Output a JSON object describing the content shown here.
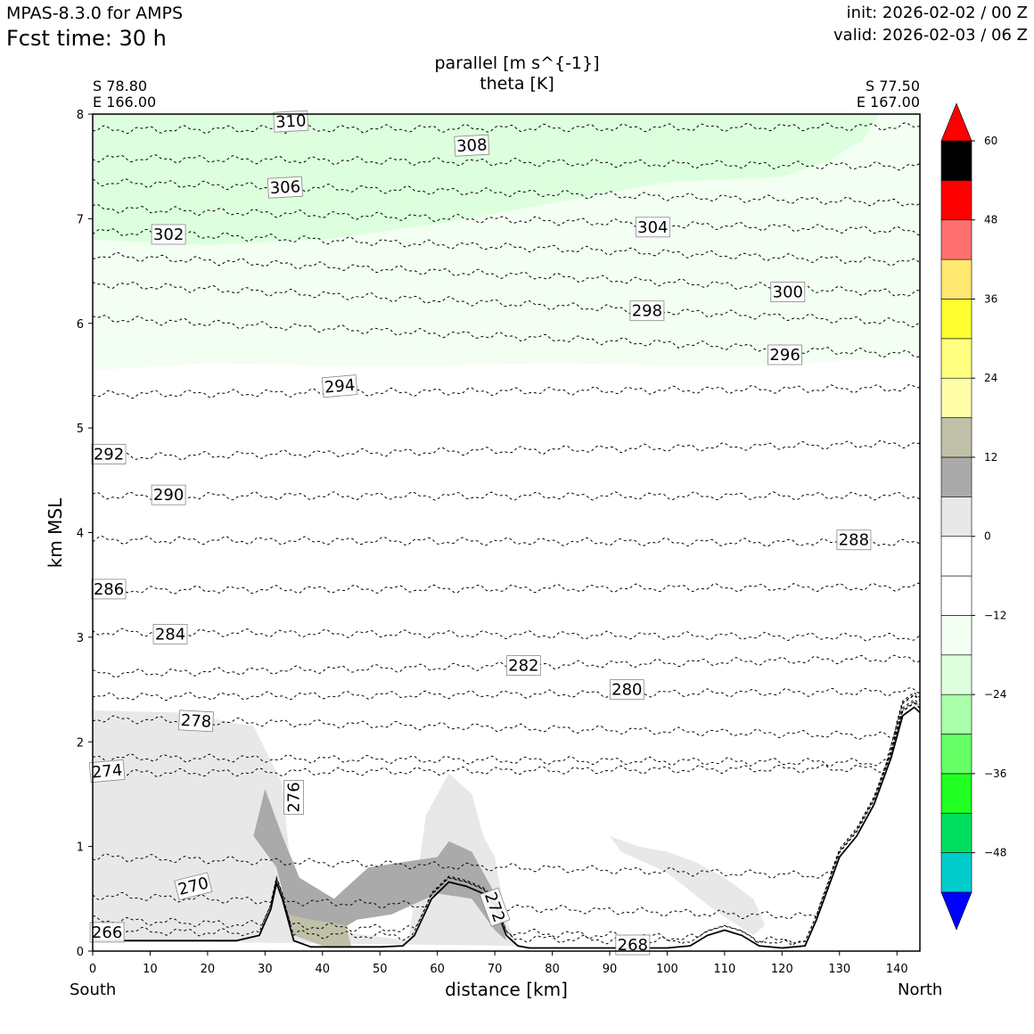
{
  "header": {
    "model": "MPAS-8.3.0 for AMPS",
    "fcst_time": "Fcst time:   30 h",
    "init": "init: 2026-02-02 / 00 Z",
    "valid": "valid: 2026-02-03 / 06 Z"
  },
  "corners": {
    "left_lat": "S 78.80",
    "left_lon": "E 166.00",
    "right_lat": "S 77.50",
    "right_lon": "E 167.00",
    "left_dir": "South",
    "right_dir": "North"
  },
  "colors": {
    "terrain": "#000000",
    "contour": "#000000",
    "colorbar": [
      "#0000ff",
      "#00cccc",
      "#00e060",
      "#22ff22",
      "#66ff66",
      "#aaffaa",
      "#ddffdd",
      "#f2fff2",
      "#ffffff",
      "#ffffff",
      "#e8e8e8",
      "#aaaaaa",
      "#c0c0a8",
      "#ffffaa",
      "#ffff80",
      "#ffff30",
      "#ffe870",
      "#ff7070",
      "#ff0000"
    ]
  },
  "chart_data": {
    "type": "contour",
    "title": "parallel [m s^{-1}]",
    "subtitle": "theta [K]",
    "xlabel": "distance [km]",
    "ylabel": "km MSL",
    "xlim": [
      0,
      144
    ],
    "ylim": [
      0,
      8
    ],
    "x_ticks": [
      0,
      10,
      20,
      30,
      40,
      50,
      60,
      70,
      80,
      90,
      100,
      110,
      120,
      130,
      140
    ],
    "y_ticks": [
      0,
      1,
      2,
      3,
      4,
      5,
      6,
      7,
      8
    ],
    "colorbar": {
      "label_ticks": [
        "60",
        "48",
        "36",
        "24",
        "12",
        "0",
        "−12",
        "−24",
        "−36",
        "−48"
      ],
      "levels": [
        -54,
        -48,
        -42,
        -36,
        -30,
        -24,
        -18,
        -12,
        -6,
        0,
        6,
        12,
        18,
        24,
        30,
        36,
        42,
        48,
        54,
        60
      ],
      "extend": "both"
    },
    "terrain": {
      "x": [
        0,
        10,
        25,
        29,
        31,
        32,
        33,
        35,
        38,
        45,
        50,
        54,
        56,
        59,
        62,
        65,
        68,
        70,
        72,
        74,
        76,
        90,
        100,
        104,
        107,
        110,
        113,
        116,
        120,
        124,
        126,
        128,
        130,
        133,
        136,
        139,
        141,
        143,
        144
      ],
      "y": [
        0.1,
        0.1,
        0.1,
        0.15,
        0.4,
        0.65,
        0.5,
        0.1,
        0.04,
        0.04,
        0.04,
        0.05,
        0.15,
        0.5,
        0.66,
        0.62,
        0.55,
        0.45,
        0.15,
        0.05,
        0.03,
        0.03,
        0.03,
        0.05,
        0.15,
        0.2,
        0.15,
        0.05,
        0.03,
        0.05,
        0.3,
        0.6,
        0.9,
        1.1,
        1.4,
        1.85,
        2.25,
        2.33,
        2.28
      ]
    },
    "shading": [
      {
        "level": "-6",
        "color": "#f2fff2",
        "x": [
          0,
          20,
          40,
          60,
          80,
          100,
          120,
          144,
          144,
          0
        ],
        "y": [
          5.55,
          5.62,
          5.6,
          5.6,
          5.62,
          5.6,
          5.6,
          5.7,
          8,
          8
        ]
      },
      {
        "level": "-12",
        "color": "#ddffdd",
        "x": [
          0,
          20,
          40,
          60,
          80,
          100,
          120,
          128,
          134,
          137,
          137,
          0
        ],
        "y": [
          6.8,
          6.75,
          6.8,
          6.95,
          7.15,
          7.35,
          7.4,
          7.55,
          7.75,
          8,
          8,
          8
        ]
      },
      {
        "level": "6",
        "color": "#e8e8e8",
        "x": [
          0,
          15,
          28,
          33,
          35,
          40,
          48,
          55,
          58,
          62,
          66,
          68,
          70,
          72,
          74,
          0
        ],
        "y": [
          2.3,
          2.28,
          2.15,
          1.6,
          0.5,
          0.2,
          0.15,
          0.1,
          1.3,
          1.7,
          1.5,
          1.1,
          0.9,
          0.3,
          0.05,
          0.1
        ]
      },
      {
        "level": "6b",
        "color": "#e8e8e8",
        "x": [
          90,
          95,
          100,
          105,
          110,
          115,
          117,
          115,
          108,
          100,
          92
        ],
        "y": [
          1.1,
          1.0,
          0.95,
          0.85,
          0.7,
          0.5,
          0.25,
          0.15,
          0.4,
          0.75,
          0.95
        ]
      },
      {
        "level": "12",
        "color": "#aaaaaa",
        "x": [
          28,
          30,
          33,
          36,
          42,
          48,
          60,
          62,
          66,
          70,
          72,
          70,
          66,
          60,
          52,
          46,
          40,
          35,
          32
        ],
        "y": [
          1.1,
          1.55,
          1.1,
          0.7,
          0.5,
          0.8,
          0.9,
          1.05,
          0.95,
          0.55,
          0.1,
          0.2,
          0.5,
          0.55,
          0.35,
          0.3,
          0.1,
          0.15,
          0.8
        ]
      },
      {
        "level": "18",
        "color": "#c0c0a8",
        "x": [
          34,
          38,
          44,
          45,
          40,
          35
        ],
        "y": [
          0.35,
          0.3,
          0.25,
          0.05,
          0.05,
          0.15
        ]
      }
    ],
    "theta_contours": [
      {
        "value": 266,
        "y_left": 0.2,
        "y_right": 0.05,
        "label_x": 2.5,
        "label_y": 0.18,
        "label_rot": 0
      },
      {
        "value": 268,
        "y_left": 0.3,
        "y_right": 0.06,
        "label_x": 94,
        "label_y": 0.06,
        "label_rot": 0
      },
      {
        "value": 270,
        "y_left": 0.53,
        "y_right": 0.3,
        "label_x": 17.5,
        "label_y": 0.62,
        "label_rot": -14
      },
      {
        "value": 272,
        "y_left": 0.9,
        "y_right": 0.7,
        "label_x": 70,
        "label_y": 0.42,
        "label_rot": 70
      },
      {
        "value": 274,
        "y_left": 1.7,
        "y_right": 1.75,
        "label_x": 2.5,
        "label_y": 1.72,
        "label_rot": -5
      },
      {
        "value": 276,
        "y_left": 1.85,
        "y_right": 1.8,
        "label_x": 35,
        "label_y": 1.47,
        "label_rot": -90
      },
      {
        "value": 278,
        "y_left": 2.22,
        "y_right": 2.05,
        "label_x": 18,
        "label_y": 2.2,
        "label_rot": 3
      },
      {
        "value": 280,
        "y_left": 2.43,
        "y_right": 2.48,
        "label_x": 93,
        "label_y": 2.5,
        "label_rot": 0
      },
      {
        "value": 282,
        "y_left": 2.65,
        "y_right": 2.8,
        "label_x": 75,
        "label_y": 2.73,
        "label_rot": 0
      },
      {
        "value": 284,
        "y_left": 3.05,
        "y_right": 3.0,
        "label_x": 13.5,
        "label_y": 3.03,
        "label_rot": 0
      },
      {
        "value": 286,
        "y_left": 3.45,
        "y_right": 3.48,
        "label_x": 2.8,
        "label_y": 3.46,
        "label_rot": 0
      },
      {
        "value": 288,
        "y_left": 3.93,
        "y_right": 3.9,
        "label_x": 132.5,
        "label_y": 3.93,
        "label_rot": 0
      },
      {
        "value": 290,
        "y_left": 4.35,
        "y_right": 4.35,
        "label_x": 13.2,
        "label_y": 4.36,
        "label_rot": 0
      },
      {
        "value": 292,
        "y_left": 4.72,
        "y_right": 4.85,
        "label_x": 2.8,
        "label_y": 4.75,
        "label_rot": 0
      },
      {
        "value": 294,
        "y_left": 5.32,
        "y_right": 5.38,
        "label_x": 43,
        "label_y": 5.4,
        "label_rot": -5
      },
      {
        "value": 296,
        "y_left": 6.05,
        "y_right": 5.7,
        "label_x": 120.5,
        "label_y": 5.7,
        "label_rot": 0
      },
      {
        "value": 298,
        "y_left": 6.38,
        "y_right": 6.0,
        "label_x": 96.5,
        "label_y": 6.12,
        "label_rot": 0
      },
      {
        "value": 300,
        "y_left": 6.65,
        "y_right": 6.28,
        "label_x": 121,
        "label_y": 6.3,
        "label_rot": 0
      },
      {
        "value": 302,
        "y_left": 6.88,
        "y_right": 6.58,
        "label_x": 13.2,
        "label_y": 6.85,
        "label_rot": 0
      },
      {
        "value": 304,
        "y_left": 7.1,
        "y_right": 6.88,
        "label_x": 97.5,
        "label_y": 6.92,
        "label_rot": 0
      },
      {
        "value": 306,
        "y_left": 7.35,
        "y_right": 7.15,
        "label_x": 33.5,
        "label_y": 7.3,
        "label_rot": -3
      },
      {
        "value": 308,
        "y_left": 7.58,
        "y_right": 7.5,
        "label_x": 66,
        "label_y": 7.7,
        "label_rot": -3
      },
      {
        "value": 310,
        "y_left": 7.85,
        "y_right": 7.88,
        "label_x": 34.5,
        "label_y": 7.93,
        "label_rot": -3
      }
    ]
  }
}
